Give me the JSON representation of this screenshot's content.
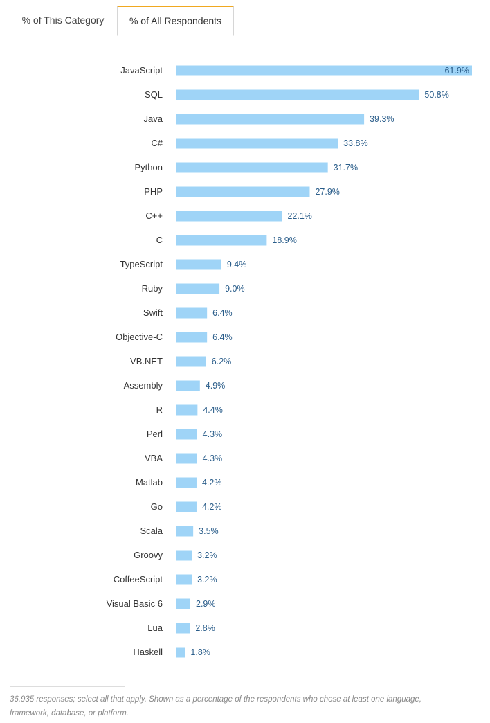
{
  "tabs": [
    {
      "label": "% of This Category",
      "active": false
    },
    {
      "label": "% of All Respondents",
      "active": true
    }
  ],
  "colors": {
    "bar": "#9fd4f7",
    "value_text": "#2a5d8a",
    "label_text": "#333333",
    "active_tab_accent": "#f0a820"
  },
  "chart_data": {
    "type": "bar",
    "orientation": "horizontal",
    "categories": [
      "JavaScript",
      "SQL",
      "Java",
      "C#",
      "Python",
      "PHP",
      "C++",
      "C",
      "TypeScript",
      "Ruby",
      "Swift",
      "Objective-C",
      "VB.NET",
      "Assembly",
      "R",
      "Perl",
      "VBA",
      "Matlab",
      "Go",
      "Scala",
      "Groovy",
      "CoffeeScript",
      "Visual Basic 6",
      "Lua",
      "Haskell"
    ],
    "values": [
      61.9,
      50.8,
      39.3,
      33.8,
      31.7,
      27.9,
      22.1,
      18.9,
      9.4,
      9.0,
      6.4,
      6.4,
      6.2,
      4.9,
      4.4,
      4.3,
      4.3,
      4.2,
      4.2,
      3.5,
      3.2,
      3.2,
      2.9,
      2.8,
      1.8
    ],
    "value_labels": [
      "61.9%",
      "50.8%",
      "39.3%",
      "33.8%",
      "31.7%",
      "27.9%",
      "22.1%",
      "18.9%",
      "9.4%",
      "9.0%",
      "6.4%",
      "6.4%",
      "6.2%",
      "4.9%",
      "4.4%",
      "4.3%",
      "4.3%",
      "4.2%",
      "4.2%",
      "3.5%",
      "3.2%",
      "3.2%",
      "2.9%",
      "2.8%",
      "1.8%"
    ],
    "xlim": [
      0,
      61.9
    ],
    "grid": false,
    "legend": "none"
  },
  "footnote": "36,935 responses; select all that apply. Shown as a percentage of the respondents who chose at least one language, framework, database, or platform."
}
